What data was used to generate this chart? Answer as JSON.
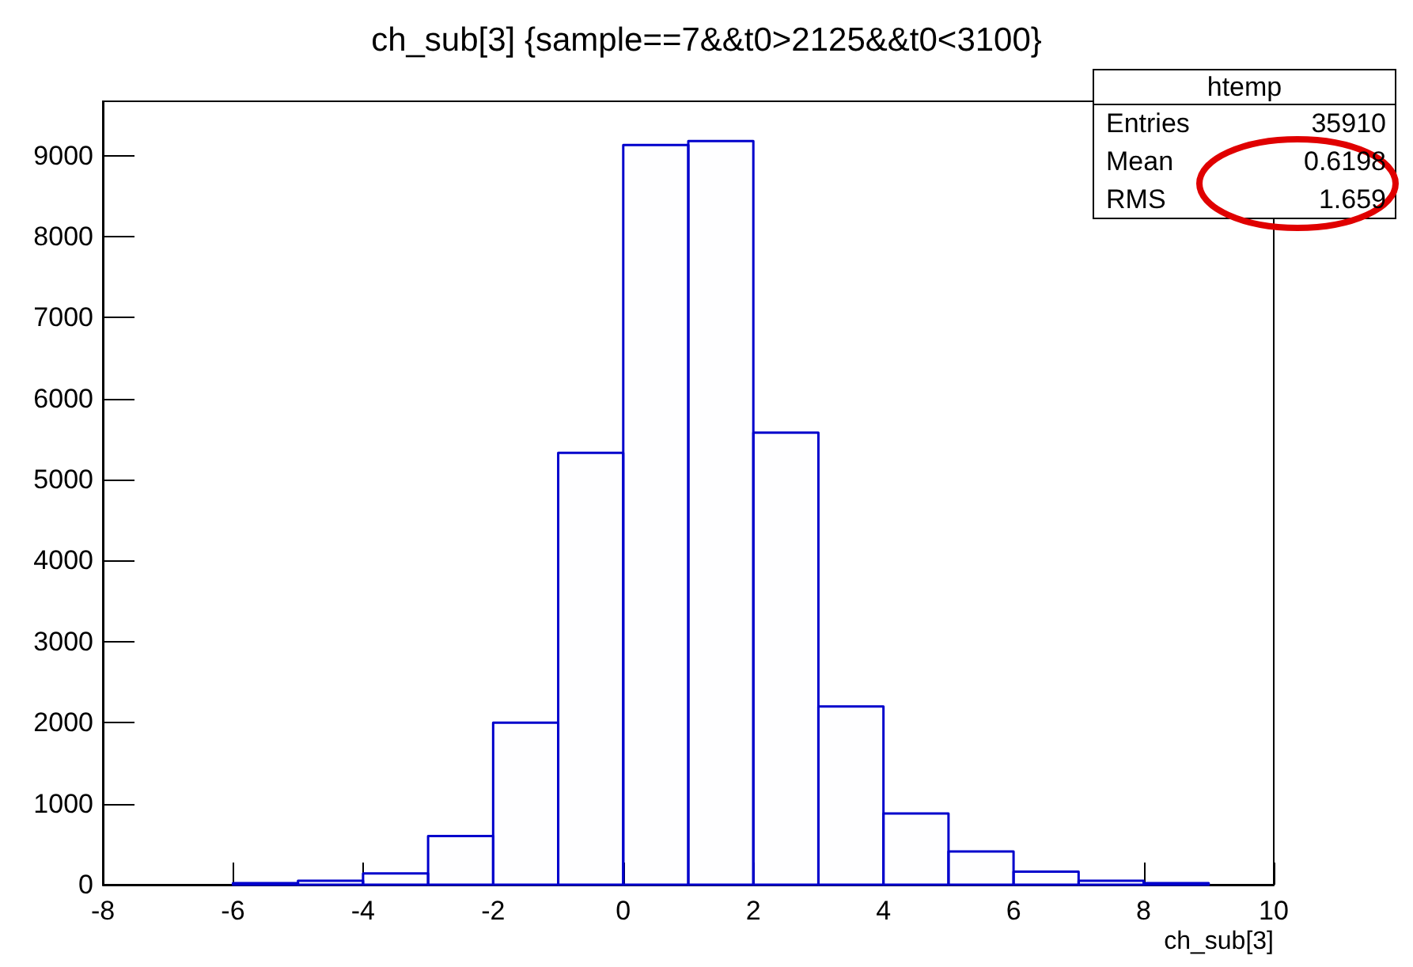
{
  "chart_data": {
    "type": "histogram",
    "title": "ch_sub[3] {sample==7&&t0>2125&&t0<3100}",
    "xlabel": "ch_sub[3]",
    "bins": [
      -6,
      -5,
      -4,
      -3,
      -2,
      -1,
      0,
      1,
      2,
      3,
      4,
      5,
      6,
      7,
      8,
      9
    ],
    "values": [
      20,
      50,
      140,
      600,
      2000,
      5330,
      9130,
      9180,
      5580,
      2200,
      880,
      410,
      160,
      50,
      20
    ],
    "color": "#0000cc",
    "xlim": [
      -8,
      10
    ],
    "xticks": [
      -8,
      -6,
      -4,
      -2,
      0,
      2,
      4,
      6,
      8,
      10
    ],
    "ylim": [
      0,
      9670
    ],
    "yticks": [
      0,
      1000,
      2000,
      3000,
      4000,
      5000,
      6000,
      7000,
      8000,
      9000
    ],
    "grid": false,
    "annotations": [
      "htemp",
      "Entries",
      "35910",
      "Mean",
      "0.6198",
      "RMS",
      "1.659"
    ]
  }
}
